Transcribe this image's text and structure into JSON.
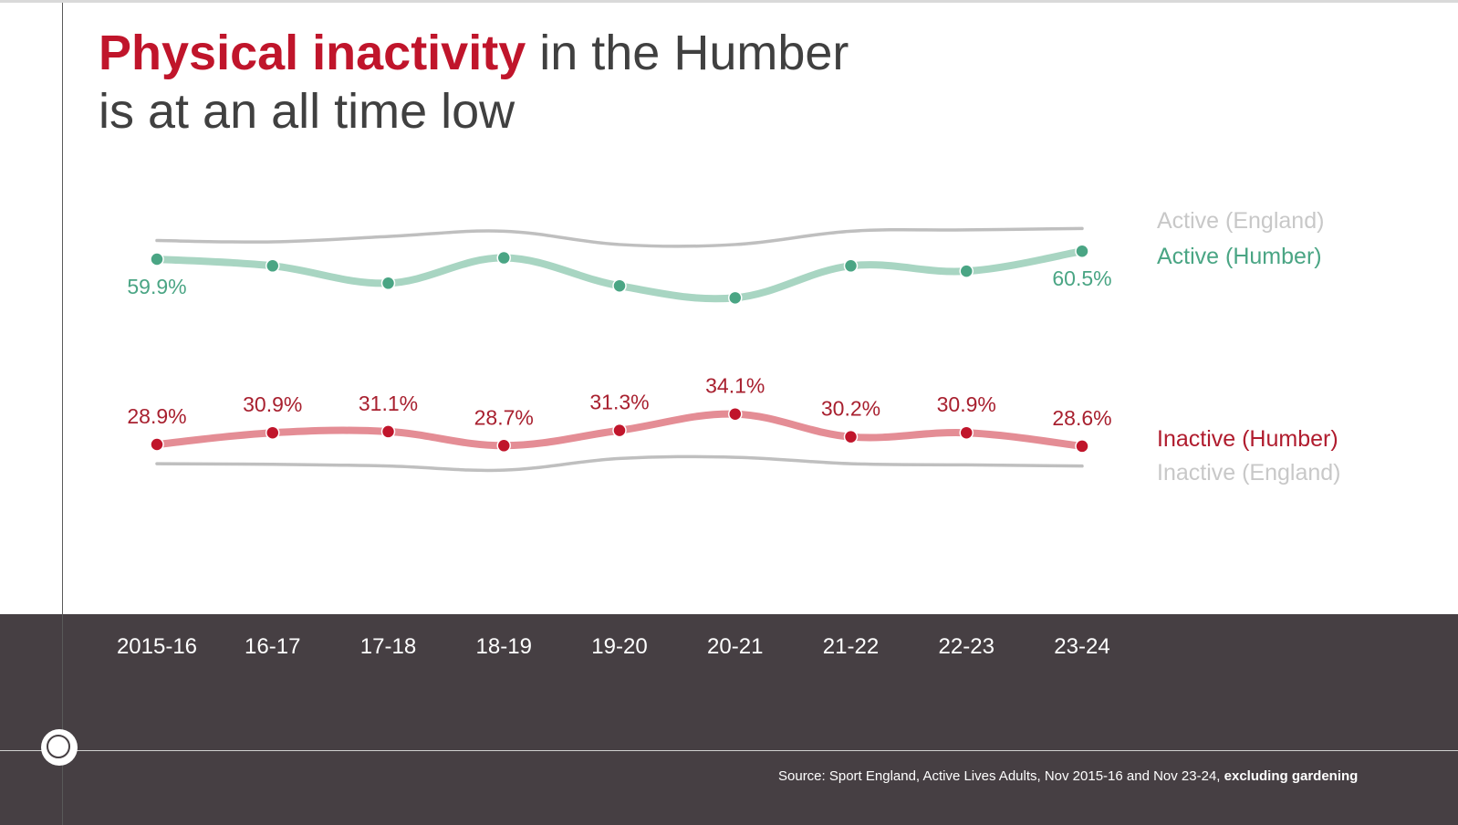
{
  "title": {
    "highlight": "Physical inactivity",
    "rest_line1": " in the Humber",
    "line2": "is at an all time low"
  },
  "legend": {
    "active_england": "Active (England)",
    "active_humber": "Active (Humber)",
    "inactive_humber": "Inactive (Humber)",
    "inactive_england": "Inactive (England)"
  },
  "source": {
    "text": "Source: Sport England, Active Lives Adults, Nov 2015-16 and Nov 23-24, ",
    "bold": "excluding gardening"
  },
  "colors": {
    "accent_red": "#c0152b",
    "active_line": "#a8d5c2",
    "active_point": "#4aa584",
    "active_label": "#4aa584",
    "inactive_line": "#e48d95",
    "inactive_point": "#c0152b",
    "inactive_label": "#a8202f",
    "england_line": "#bfbfbf",
    "band": "#463f43"
  },
  "chart_data": {
    "type": "line",
    "categories": [
      "2015-16",
      "16-17",
      "17-18",
      "18-19",
      "19-20",
      "20-21",
      "21-22",
      "22-23",
      "23-24"
    ],
    "series": [
      {
        "name": "Active (England)",
        "values": [
          61.3,
          61.2,
          61.6,
          62.0,
          61.0,
          61.0,
          62.0,
          62.1,
          62.2
        ]
      },
      {
        "name": "Active (Humber)",
        "values": [
          59.9,
          59.4,
          58.1,
          60.0,
          57.9,
          57.0,
          59.4,
          59.0,
          60.5
        ],
        "labels": [
          "59.9%",
          "",
          "",
          "",
          "",
          "",
          "",
          "",
          "60.5%"
        ]
      },
      {
        "name": "Inactive (Humber)",
        "values": [
          28.9,
          30.9,
          31.1,
          28.7,
          31.3,
          34.1,
          30.2,
          30.9,
          28.6
        ],
        "labels": [
          "28.9%",
          "30.9%",
          "31.1%",
          "28.7%",
          "31.3%",
          "34.1%",
          "30.2%",
          "30.9%",
          "28.6%"
        ]
      },
      {
        "name": "Inactive (England)",
        "values": [
          25.6,
          25.5,
          25.2,
          24.5,
          26.5,
          26.7,
          25.6,
          25.4,
          25.2
        ]
      }
    ],
    "grid": false
  }
}
